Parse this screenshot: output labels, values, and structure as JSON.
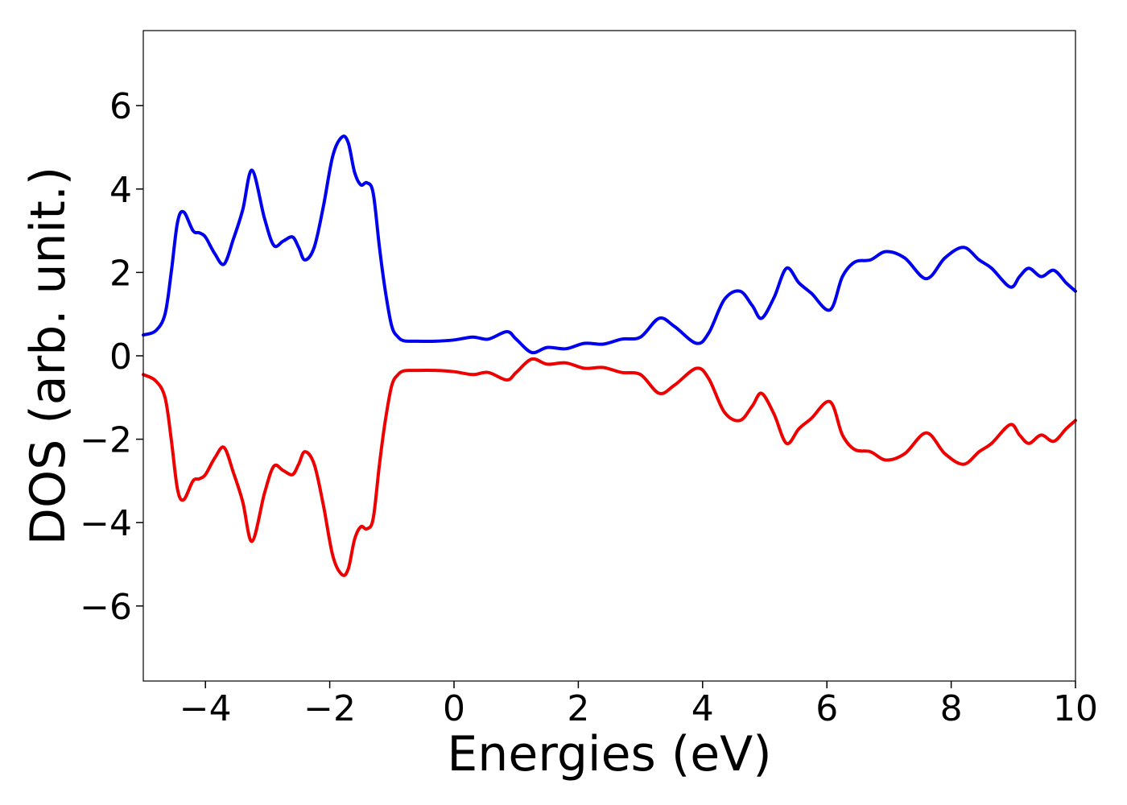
{
  "chart_data": {
    "type": "line",
    "title": "",
    "xlabel": "Energies (eV)",
    "ylabel": "DOS (arb. unit.)",
    "xlim": [
      -5,
      10
    ],
    "ylim": [
      -7.8,
      7.8
    ],
    "x_ticks": [
      -4,
      -2,
      0,
      2,
      4,
      6,
      8,
      10
    ],
    "y_ticks": [
      -6,
      -4,
      -2,
      0,
      2,
      4,
      6
    ],
    "x_tick_labels": [
      "−4",
      "−2",
      "0",
      "2",
      "4",
      "6",
      "8",
      "10"
    ],
    "y_tick_labels": [
      "−6",
      "−4",
      "−2",
      "0",
      "2",
      "4",
      "6"
    ],
    "grid": false,
    "legend": "none",
    "colors": {
      "spin_up": "#0000ee",
      "spin_down": "#ee0000"
    },
    "series": [
      {
        "x": [
          -5.0,
          -4.8,
          -4.65,
          -4.55,
          -4.45,
          -4.35,
          -4.2,
          -4.1,
          -4.0,
          -3.85,
          -3.7,
          -3.55,
          -3.4,
          -3.25,
          -3.05,
          -2.9,
          -2.75,
          -2.6,
          -2.5,
          -2.4,
          -2.25,
          -2.1,
          -1.95,
          -1.8,
          -1.7,
          -1.6,
          -1.5,
          -1.4,
          -1.3,
          -1.2,
          -1.1,
          -1.0,
          -0.9,
          -0.8,
          -0.6,
          -0.3,
          0.0,
          0.3,
          0.55,
          0.85,
          1.0,
          1.25,
          1.5,
          1.8,
          2.1,
          2.4,
          2.7,
          3.0,
          3.3,
          3.55,
          3.9,
          4.1,
          4.35,
          4.6,
          4.8,
          4.95,
          5.15,
          5.35,
          5.55,
          5.75,
          6.05,
          6.25,
          6.45,
          6.7,
          6.95,
          7.25,
          7.6,
          7.9,
          8.2,
          8.45,
          8.65,
          8.95,
          9.1,
          9.25,
          9.45,
          9.65,
          9.85,
          10.0
        ],
        "values": [
          0.5,
          0.6,
          1.0,
          2.0,
          3.2,
          3.45,
          3.0,
          2.95,
          2.85,
          2.45,
          2.2,
          2.8,
          3.5,
          4.45,
          3.3,
          2.65,
          2.75,
          2.85,
          2.6,
          2.3,
          2.6,
          3.6,
          4.8,
          5.25,
          5.1,
          4.4,
          4.1,
          4.15,
          3.9,
          2.6,
          1.5,
          0.7,
          0.45,
          0.36,
          0.35,
          0.35,
          0.38,
          0.45,
          0.4,
          0.58,
          0.4,
          0.08,
          0.2,
          0.17,
          0.3,
          0.28,
          0.4,
          0.45,
          0.9,
          0.7,
          0.3,
          0.55,
          1.35,
          1.55,
          1.2,
          0.9,
          1.4,
          2.1,
          1.75,
          1.5,
          1.1,
          1.9,
          2.25,
          2.3,
          2.5,
          2.35,
          1.85,
          2.35,
          2.6,
          2.3,
          2.1,
          1.65,
          1.9,
          2.1,
          1.9,
          2.05,
          1.75,
          1.55
        ]
      },
      {
        "x": [
          -5.0,
          -4.8,
          -4.65,
          -4.55,
          -4.45,
          -4.35,
          -4.2,
          -4.1,
          -4.0,
          -3.85,
          -3.7,
          -3.55,
          -3.4,
          -3.25,
          -3.05,
          -2.9,
          -2.75,
          -2.6,
          -2.5,
          -2.4,
          -2.25,
          -2.1,
          -1.95,
          -1.8,
          -1.7,
          -1.6,
          -1.5,
          -1.4,
          -1.3,
          -1.2,
          -1.1,
          -1.0,
          -0.9,
          -0.8,
          -0.6,
          -0.3,
          0.0,
          0.3,
          0.55,
          0.85,
          1.0,
          1.25,
          1.5,
          1.8,
          2.1,
          2.4,
          2.7,
          3.0,
          3.3,
          3.55,
          3.9,
          4.1,
          4.35,
          4.6,
          4.8,
          4.95,
          5.15,
          5.35,
          5.55,
          5.75,
          6.05,
          6.25,
          6.45,
          6.7,
          6.95,
          7.25,
          7.6,
          7.9,
          8.2,
          8.45,
          8.65,
          8.95,
          9.1,
          9.25,
          9.45,
          9.65,
          9.85,
          10.0
        ],
        "values": [
          -0.45,
          -0.6,
          -1.0,
          -2.0,
          -3.2,
          -3.45,
          -3.0,
          -2.95,
          -2.85,
          -2.45,
          -2.2,
          -2.8,
          -3.5,
          -4.45,
          -3.3,
          -2.65,
          -2.75,
          -2.85,
          -2.6,
          -2.3,
          -2.6,
          -3.6,
          -4.8,
          -5.25,
          -5.1,
          -4.4,
          -4.1,
          -4.15,
          -3.9,
          -2.6,
          -1.5,
          -0.7,
          -0.45,
          -0.36,
          -0.35,
          -0.35,
          -0.38,
          -0.45,
          -0.4,
          -0.58,
          -0.4,
          -0.08,
          -0.2,
          -0.17,
          -0.3,
          -0.28,
          -0.4,
          -0.45,
          -0.9,
          -0.7,
          -0.3,
          -0.55,
          -1.35,
          -1.55,
          -1.2,
          -0.9,
          -1.4,
          -2.1,
          -1.75,
          -1.5,
          -1.1,
          -1.9,
          -2.25,
          -2.3,
          -2.5,
          -2.35,
          -1.85,
          -2.35,
          -2.6,
          -2.3,
          -2.1,
          -1.65,
          -1.9,
          -2.1,
          -1.9,
          -2.05,
          -1.75,
          -1.55
        ]
      }
    ]
  }
}
